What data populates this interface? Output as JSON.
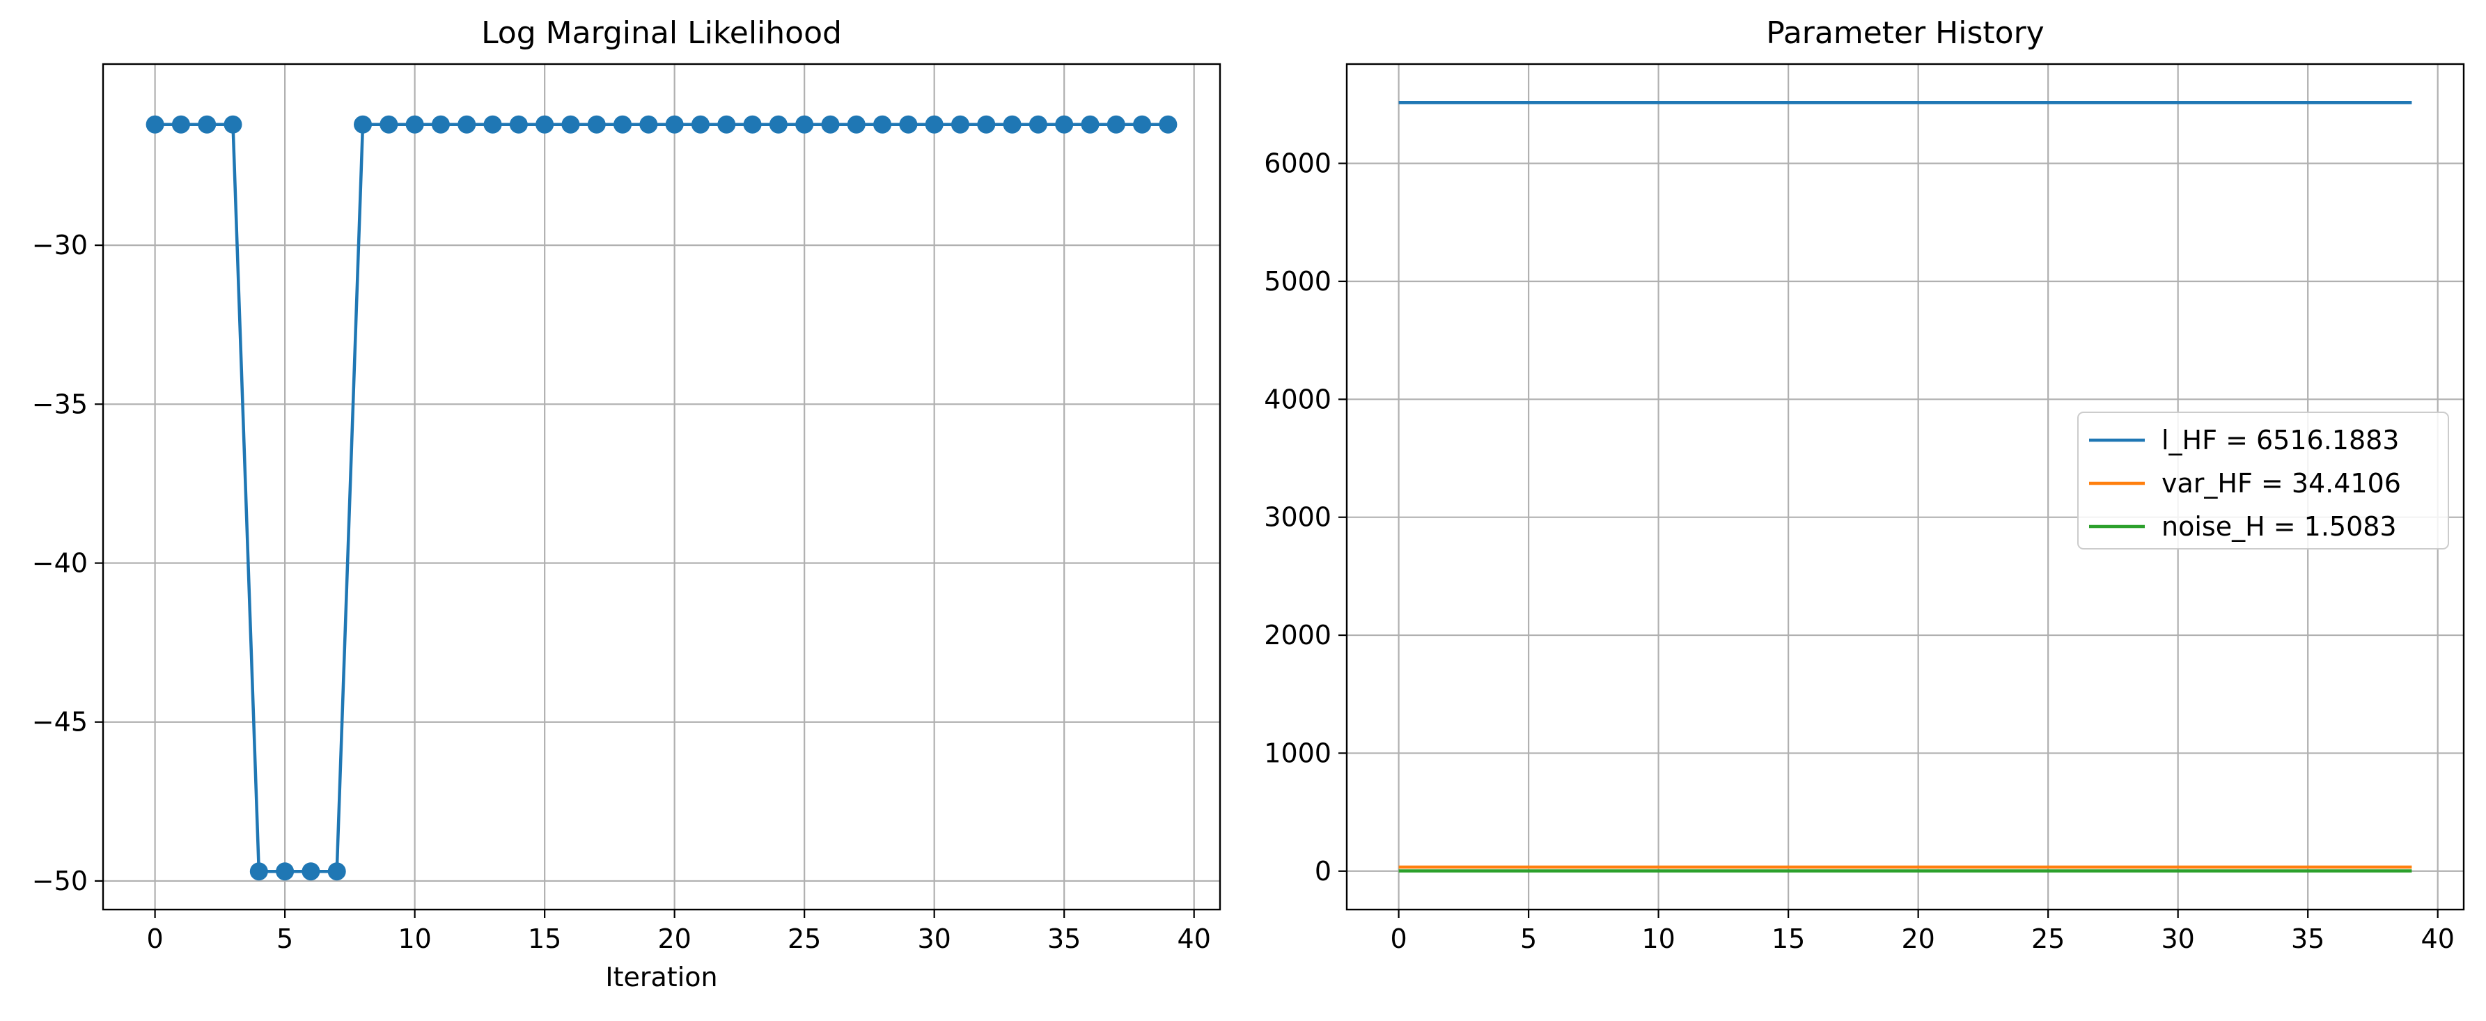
{
  "chart_data": [
    {
      "type": "line",
      "title": "Log Marginal Likelihood",
      "xlabel": "Iteration",
      "ylabel": "",
      "xlim": [
        -2,
        41
      ],
      "ylim": [
        -50.9,
        -24.3
      ],
      "xticks": [
        0,
        5,
        10,
        15,
        20,
        25,
        30,
        35,
        40
      ],
      "xtick_labels": [
        "0",
        "5",
        "10",
        "15",
        "20",
        "25",
        "30",
        "35",
        "40"
      ],
      "yticks": [
        -30,
        -35,
        -40,
        -45,
        -50
      ],
      "ytick_labels": [
        "−30",
        "−35",
        "−40",
        "−45",
        "−50"
      ],
      "grid": true,
      "series": [
        {
          "color": "#1f77b4",
          "marker": "circle",
          "x": [
            0,
            1,
            2,
            3,
            4,
            5,
            6,
            7,
            8,
            9,
            10,
            11,
            12,
            13,
            14,
            15,
            16,
            17,
            18,
            19,
            20,
            21,
            22,
            23,
            24,
            25,
            26,
            27,
            28,
            29,
            30,
            31,
            32,
            33,
            34,
            35,
            36,
            37,
            38,
            39
          ],
          "y": [
            -26.2,
            -26.2,
            -26.2,
            -26.2,
            -49.7,
            -49.7,
            -49.7,
            -49.7,
            -26.2,
            -26.2,
            -26.2,
            -26.2,
            -26.2,
            -26.2,
            -26.2,
            -26.2,
            -26.2,
            -26.2,
            -26.2,
            -26.2,
            -26.2,
            -26.2,
            -26.2,
            -26.2,
            -26.2,
            -26.2,
            -26.2,
            -26.2,
            -26.2,
            -26.2,
            -26.2,
            -26.2,
            -26.2,
            -26.2,
            -26.2,
            -26.2,
            -26.2,
            -26.2,
            -26.2,
            -26.2
          ]
        }
      ]
    },
    {
      "type": "line",
      "title": "Parameter History",
      "xlabel": "",
      "ylabel": "",
      "xlim": [
        -2,
        41
      ],
      "ylim": [
        -326,
        6842
      ],
      "xticks": [
        0,
        5,
        10,
        15,
        20,
        25,
        30,
        35,
        40
      ],
      "xtick_labels": [
        "0",
        "5",
        "10",
        "15",
        "20",
        "25",
        "30",
        "35",
        "40"
      ],
      "yticks": [
        0,
        1000,
        2000,
        3000,
        4000,
        5000,
        6000
      ],
      "ytick_labels": [
        "0",
        "1000",
        "2000",
        "3000",
        "4000",
        "5000",
        "6000"
      ],
      "grid": true,
      "legend_position": "center-right",
      "series": [
        {
          "name": "l_HF = 6516.1883",
          "color": "#1f77b4",
          "x": [
            0,
            39
          ],
          "y": [
            6516.1883,
            6516.1883
          ]
        },
        {
          "name": "var_HF = 34.4106",
          "color": "#ff7f0e",
          "x": [
            0,
            39
          ],
          "y": [
            34.4106,
            34.4106
          ]
        },
        {
          "name": "noise_H = 1.5083",
          "color": "#2ca02c",
          "x": [
            0,
            39
          ],
          "y": [
            1.5083,
            1.5083
          ]
        }
      ]
    }
  ]
}
